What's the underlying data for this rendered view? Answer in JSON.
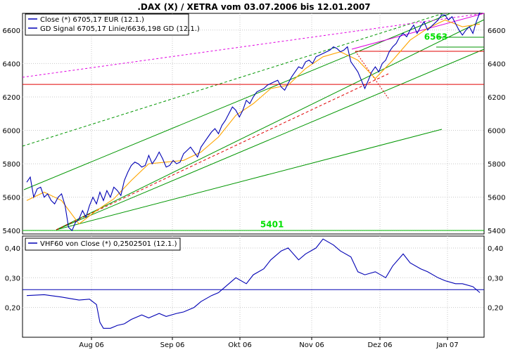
{
  "chart_data": {
    "type": "line",
    "title": ".DAX (X) / XETRA vom 03.07.2006 bis 12.01.2007",
    "x_ticks": [
      "Aug 06",
      "Sep 06",
      "Okt 06",
      "Nov 06",
      "Dez 06",
      "Jan 07"
    ],
    "price_panel": {
      "ylim": [
        5380,
        6700
      ],
      "y_ticks": [
        "5400",
        "5600",
        "5800",
        "6000",
        "6200",
        "6400",
        "6600"
      ],
      "legend": [
        {
          "label": "Close (*) 6705,17 EUR (12.1.)",
          "color": "#0000b4"
        },
        {
          "label": "GD Signal 6705,17 Linie/6636,198 GD (12.1.)",
          "color": "#0000b4"
        }
      ],
      "series": [
        {
          "name": "Close",
          "color": "#0000b4",
          "x": [
            0,
            1,
            2,
            3,
            4,
            5,
            6,
            7,
            8,
            9,
            10,
            11,
            12,
            13,
            14,
            15,
            16,
            17,
            18,
            19,
            20,
            21,
            22,
            23,
            24,
            25,
            26,
            27,
            28,
            29,
            30,
            31,
            32,
            33,
            34,
            35,
            36,
            37,
            38,
            39,
            40,
            41,
            42,
            43,
            44,
            45,
            46,
            47,
            48,
            49,
            50,
            51,
            52,
            53,
            54,
            55,
            56,
            57,
            58,
            59,
            60,
            61,
            62,
            63,
            64,
            65,
            66,
            67,
            68,
            69,
            70,
            71,
            72,
            73,
            74,
            75,
            76,
            77,
            78,
            79,
            80,
            81,
            82,
            83,
            84,
            85,
            86,
            87,
            88,
            89,
            90,
            91,
            92,
            93,
            94,
            95,
            96,
            97,
            98,
            99,
            100,
            101,
            102,
            103,
            104,
            105,
            106,
            107,
            108,
            109,
            110,
            111,
            112,
            113,
            114,
            115,
            116,
            117,
            118,
            119,
            120,
            121,
            122,
            123,
            124,
            125,
            126,
            127,
            128,
            129,
            130
          ],
          "y": [
            5690,
            5720,
            5600,
            5650,
            5660,
            5600,
            5620,
            5580,
            5560,
            5600,
            5620,
            5550,
            5420,
            5400,
            5450,
            5470,
            5520,
            5480,
            5550,
            5600,
            5560,
            5630,
            5580,
            5640,
            5600,
            5660,
            5640,
            5610,
            5700,
            5750,
            5790,
            5810,
            5800,
            5780,
            5790,
            5850,
            5800,
            5830,
            5870,
            5830,
            5780,
            5790,
            5820,
            5800,
            5810,
            5860,
            5880,
            5900,
            5870,
            5840,
            5900,
            5930,
            5960,
            5990,
            6010,
            5980,
            6030,
            6060,
            6100,
            6140,
            6120,
            6080,
            6120,
            6180,
            6160,
            6200,
            6230,
            6240,
            6250,
            6270,
            6280,
            6290,
            6300,
            6260,
            6240,
            6280,
            6320,
            6350,
            6380,
            6370,
            6410,
            6420,
            6400,
            6440,
            6450,
            6460,
            6470,
            6480,
            6500,
            6490,
            6470,
            6480,
            6500,
            6410,
            6380,
            6350,
            6300,
            6250,
            6300,
            6350,
            6380,
            6350,
            6400,
            6420,
            6470,
            6500,
            6520,
            6560,
            6580,
            6560,
            6600,
            6630,
            6580,
            6620,
            6650,
            6600,
            6620,
            6640,
            6660,
            6690,
            6690,
            6660,
            6680,
            6640,
            6600,
            6570,
            6600,
            6620,
            6580,
            6650,
            6705
          ]
        },
        {
          "name": "GD Signal",
          "color": "#ffa500",
          "x": [
            0,
            5,
            10,
            15,
            20,
            25,
            30,
            35,
            40,
            45,
            50,
            55,
            60,
            65,
            70,
            75,
            80,
            85,
            90,
            95,
            100,
            105,
            110,
            115,
            120,
            125,
            130
          ],
          "y": [
            5580,
            5630,
            5580,
            5440,
            5520,
            5590,
            5700,
            5800,
            5810,
            5820,
            5870,
            5960,
            6090,
            6160,
            6250,
            6270,
            6370,
            6440,
            6470,
            6420,
            6310,
            6420,
            6540,
            6610,
            6660,
            6620,
            6636
          ]
        }
      ],
      "hlines": [
        {
          "y": 6275,
          "color": "#e00000"
        },
        {
          "y": 5401,
          "color": "#00b400"
        }
      ],
      "labels": [
        {
          "text": "5401",
          "x": 67,
          "y": 5440,
          "color": "#00e000"
        },
        {
          "text": "6563",
          "x": 114,
          "y": 6563,
          "color": "#00e000"
        }
      ]
    },
    "vhf_panel": {
      "ylim": [
        0.1,
        0.44
      ],
      "y_ticks": [
        "0,20",
        "0,30",
        "0,40"
      ],
      "legend": [
        {
          "label": "VHF60 von Close (*) 0,2502501 (12.1.)",
          "color": "#0000b4"
        }
      ],
      "series": [
        {
          "name": "VHF60",
          "color": "#0000b4",
          "x": [
            0,
            5,
            10,
            15,
            18,
            20,
            21,
            22,
            24,
            26,
            28,
            30,
            33,
            35,
            38,
            40,
            43,
            45,
            48,
            50,
            53,
            55,
            58,
            60,
            63,
            65,
            68,
            70,
            73,
            75,
            78,
            80,
            83,
            85,
            88,
            90,
            93,
            95,
            97,
            100,
            103,
            105,
            108,
            110,
            113,
            115,
            118,
            120,
            123,
            125,
            128,
            130
          ],
          "y": [
            0.24,
            0.243,
            0.235,
            0.225,
            0.228,
            0.21,
            0.15,
            0.13,
            0.13,
            0.14,
            0.145,
            0.16,
            0.175,
            0.165,
            0.18,
            0.17,
            0.18,
            0.185,
            0.2,
            0.22,
            0.24,
            0.25,
            0.28,
            0.3,
            0.28,
            0.31,
            0.33,
            0.36,
            0.39,
            0.4,
            0.36,
            0.38,
            0.4,
            0.43,
            0.41,
            0.39,
            0.37,
            0.32,
            0.31,
            0.32,
            0.3,
            0.34,
            0.38,
            0.35,
            0.33,
            0.32,
            0.3,
            0.29,
            0.28,
            0.28,
            0.27,
            0.25
          ]
        }
      ],
      "hlines": [
        {
          "y": 0.26,
          "color": "#0000b4"
        }
      ]
    }
  }
}
